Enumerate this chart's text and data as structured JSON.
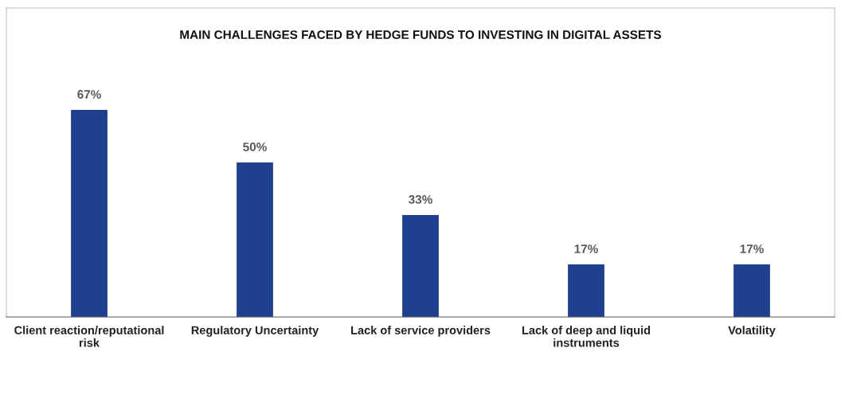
{
  "chart_data": {
    "type": "bar",
    "title": "MAIN CHALLENGES FACED BY HEDGE FUNDS TO INVESTING IN DIGITAL ASSETS",
    "categories": [
      "Client reaction/reputational\nrisk",
      "Regulatory Uncertainty",
      "Lack of service providers",
      "Lack of deep and liquid\ninstruments",
      "Volatility"
    ],
    "values": [
      67,
      50,
      33,
      17,
      17
    ],
    "value_labels": [
      "67%",
      "50%",
      "33%",
      "17%",
      "17%"
    ],
    "color": "#1f3f8f",
    "ylim": [
      0,
      100
    ],
    "tick_labels": "x",
    "grid": false
  }
}
